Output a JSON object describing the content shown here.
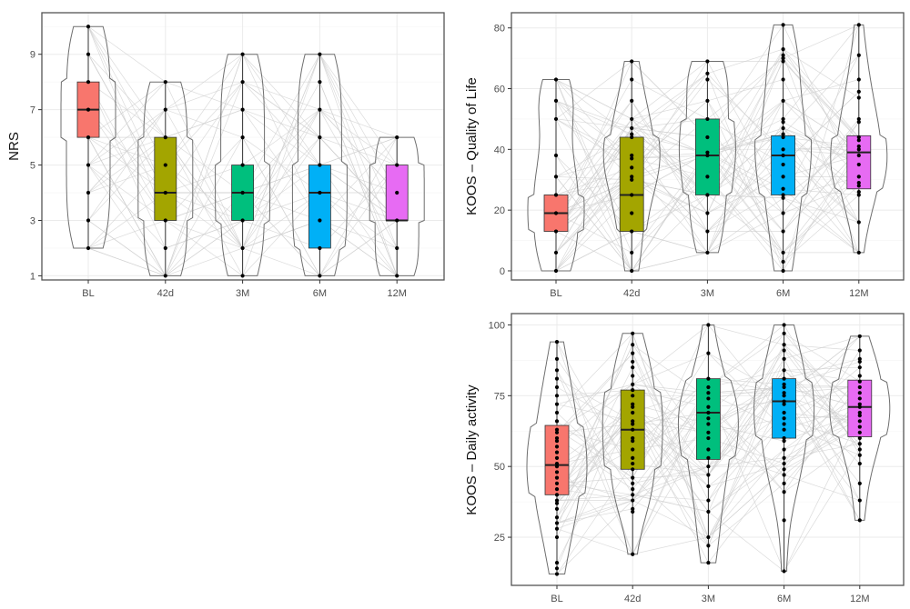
{
  "chart_data": [
    {
      "id": "nrs",
      "type": "violin-box",
      "title": "",
      "xlabel": "",
      "ylabel": "NRS",
      "categories": [
        "BL",
        "42d",
        "3M",
        "6M",
        "12M"
      ],
      "yticks": [
        1,
        3,
        5,
        7,
        9
      ],
      "ylim": [
        0.85,
        10.5
      ],
      "grid": true,
      "legend": "none",
      "fill_colors": [
        "#F8766D",
        "#A3A500",
        "#00BF7D",
        "#00B0F6",
        "#E76BF3"
      ],
      "groups": [
        {
          "category": "BL",
          "min": 2,
          "q1": 6,
          "median": 7,
          "q3": 8,
          "max": 10,
          "points": [
            2,
            3,
            4,
            5,
            6,
            7,
            8,
            9,
            10
          ]
        },
        {
          "category": "42d",
          "min": 1,
          "q1": 3,
          "median": 4,
          "q3": 6,
          "max": 8,
          "points": [
            1,
            2,
            3,
            4,
            5,
            6,
            7,
            8
          ]
        },
        {
          "category": "3M",
          "min": 1,
          "q1": 3,
          "median": 4,
          "q3": 5,
          "max": 9,
          "points": [
            1,
            2,
            3,
            4,
            5,
            6,
            7,
            8,
            9
          ]
        },
        {
          "category": "6M",
          "min": 1,
          "q1": 2,
          "median": 4,
          "q3": 5,
          "max": 9,
          "points": [
            1,
            2,
            3,
            4,
            5,
            6,
            7,
            8,
            9
          ]
        },
        {
          "category": "12M",
          "min": 1,
          "q1": 3,
          "median": 3,
          "q3": 5,
          "max": 6,
          "points": [
            1,
            2,
            3,
            4,
            5,
            6
          ]
        }
      ]
    },
    {
      "id": "qol",
      "type": "violin-box",
      "title": "",
      "xlabel": "",
      "ylabel": "KOOS – Quality of Life",
      "categories": [
        "BL",
        "42d",
        "3M",
        "6M",
        "12M"
      ],
      "yticks": [
        0,
        20,
        40,
        60,
        80
      ],
      "ylim": [
        -3,
        85
      ],
      "grid": true,
      "legend": "none",
      "fill_colors": [
        "#F8766D",
        "#A3A500",
        "#00BF7D",
        "#00B0F6",
        "#E76BF3"
      ],
      "groups": [
        {
          "category": "BL",
          "min": 0,
          "q1": 13,
          "median": 19,
          "q3": 25,
          "max": 63,
          "points": [
            0,
            6,
            13,
            19,
            25,
            31,
            38,
            50,
            56,
            63
          ]
        },
        {
          "category": "42d",
          "min": 0,
          "q1": 13,
          "median": 25,
          "q3": 44,
          "max": 69,
          "points": [
            0,
            6,
            13,
            19,
            25,
            30,
            31,
            34,
            37,
            38,
            44,
            45,
            47,
            50,
            56,
            63,
            69
          ]
        },
        {
          "category": "3M",
          "min": 6,
          "q1": 25,
          "median": 38,
          "q3": 50,
          "max": 69,
          "points": [
            6,
            13,
            19,
            25,
            31,
            38,
            39,
            44,
            50,
            56,
            63,
            65,
            69
          ]
        },
        {
          "category": "6M",
          "min": 0,
          "q1": 25,
          "median": 38,
          "q3": 44.5,
          "max": 81,
          "points": [
            0,
            3,
            6,
            13,
            19,
            24,
            25,
            27,
            31,
            35,
            38,
            40,
            44,
            45,
            47,
            49,
            50,
            56,
            63,
            69,
            70,
            71,
            73,
            81
          ]
        },
        {
          "category": "12M",
          "min": 6,
          "q1": 27,
          "median": 39,
          "q3": 44.5,
          "max": 81,
          "points": [
            6,
            16,
            25,
            26,
            28,
            29,
            31,
            35,
            38,
            40,
            41,
            43,
            44,
            49,
            50,
            57,
            59,
            63,
            71,
            81
          ]
        }
      ]
    },
    {
      "id": "daily",
      "type": "violin-box",
      "title": "",
      "xlabel": "",
      "ylabel": "KOOS – Daily activity",
      "categories": [
        "BL",
        "42d",
        "3M",
        "6M",
        "12M"
      ],
      "yticks": [
        25,
        50,
        75,
        100
      ],
      "ylim": [
        8,
        104
      ],
      "grid": true,
      "legend": "none",
      "fill_colors": [
        "#F8766D",
        "#A3A500",
        "#00BF7D",
        "#00B0F6",
        "#E76BF3"
      ],
      "groups": [
        {
          "category": "BL",
          "min": 12,
          "q1": 40,
          "median": 50.5,
          "q3": 64.5,
          "max": 94,
          "points": [
            12,
            14,
            16,
            25,
            28,
            30,
            32,
            35,
            37,
            38,
            40,
            42,
            44,
            46,
            48,
            50,
            51,
            53,
            55,
            57,
            59,
            60,
            62,
            63,
            66,
            69,
            72,
            75,
            78,
            81,
            84,
            88,
            94
          ]
        },
        {
          "category": "42d",
          "min": 19,
          "q1": 49,
          "median": 63,
          "q3": 77,
          "max": 97,
          "points": [
            19,
            34,
            35,
            38,
            40,
            42,
            44,
            46,
            49,
            51,
            53,
            56,
            59,
            60,
            63,
            65,
            66,
            69,
            71,
            72,
            75,
            77,
            79,
            82,
            85,
            87,
            90,
            93,
            97
          ]
        },
        {
          "category": "3M",
          "min": 16,
          "q1": 52.5,
          "median": 69,
          "q3": 81,
          "max": 100,
          "points": [
            16,
            22,
            25,
            34,
            38,
            43,
            47,
            50,
            53,
            56,
            60,
            62,
            65,
            67,
            69,
            71,
            74,
            76,
            78,
            81,
            90,
            100
          ]
        },
        {
          "category": "6M",
          "min": 13,
          "q1": 60,
          "median": 73,
          "q3": 81,
          "max": 100,
          "points": [
            13,
            31,
            41,
            44,
            47,
            49,
            51,
            53,
            56,
            59,
            60,
            63,
            65,
            67,
            69,
            72,
            73,
            75,
            76,
            78,
            79,
            81,
            84,
            88,
            91,
            93,
            97,
            100
          ]
        },
        {
          "category": "12M",
          "min": 31,
          "q1": 60.5,
          "median": 71,
          "q3": 80.5,
          "max": 96,
          "points": [
            31,
            38,
            44,
            51,
            54,
            56,
            58,
            60,
            62,
            64,
            66,
            68,
            69,
            71,
            72,
            74,
            76,
            78,
            80,
            82,
            85,
            87,
            88,
            91,
            96
          ]
        }
      ]
    }
  ]
}
